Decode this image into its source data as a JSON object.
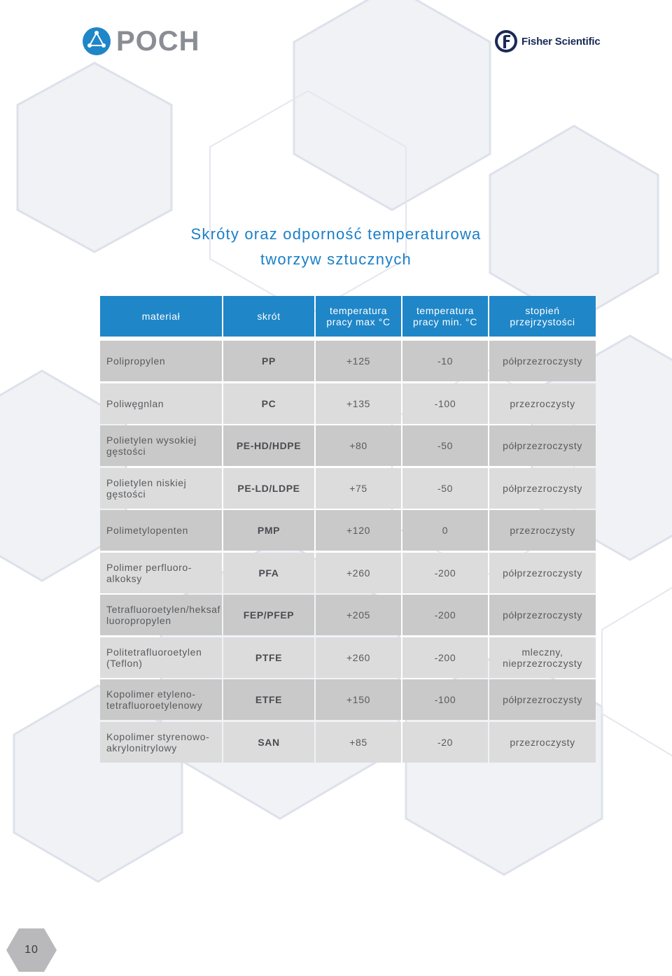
{
  "logos": {
    "poch": "POCH",
    "fisher": "Fisher Scientific"
  },
  "title": {
    "line1": "Skróty oraz odporność temperaturowa",
    "line2": "tworzyw sztucznych"
  },
  "colors": {
    "accent": "#1f86c8",
    "title": "#1a7fc7",
    "row_dark": "#c9c9c9",
    "row_light": "#dcdcdc"
  },
  "table": {
    "headers": [
      "materiał",
      "skrót",
      "temperatura\npracy max °C",
      "temperatura\npracy min. °C",
      "stopień\nprzejrzystości"
    ],
    "rows": [
      {
        "material": "Polipropylen",
        "abbr": "PP",
        "tmax": "+125",
        "tmin": "-10",
        "transparency": "półprzezroczysty"
      },
      {
        "material": "Poliwęgnlan",
        "abbr": "PC",
        "tmax": "+135",
        "tmin": "-100",
        "transparency": "przezroczysty"
      },
      {
        "material": "Polietylen wysokiej\ngęstości",
        "abbr": "PE-HD/HDPE",
        "tmax": "+80",
        "tmin": "-50",
        "transparency": "półprzezroczysty"
      },
      {
        "material": "Polietylen niskiej\ngęstości",
        "abbr": "PE-LD/LDPE",
        "tmax": "+75",
        "tmin": "-50",
        "transparency": "półprzezroczysty"
      },
      {
        "material": "Polimetylopenten",
        "abbr": "PMP",
        "tmax": "+120",
        "tmin": "0",
        "transparency": "przezroczysty"
      },
      {
        "material": "Polimer perfluoro-\nalkoksy",
        "abbr": "PFA",
        "tmax": "+260",
        "tmin": "-200",
        "transparency": "półprzezroczysty"
      },
      {
        "material": "Tetrafluoroetylen/heksaf\nluoropropylen",
        "abbr": "FEP/PFEP",
        "tmax": "+205",
        "tmin": "-200",
        "transparency": "półprzezroczysty"
      },
      {
        "material": "Politetrafluoroetylen\n(Teflon)",
        "abbr": "PTFE",
        "tmax": "+260",
        "tmin": "-200",
        "transparency": "mleczny,\nnieprzezroczysty"
      },
      {
        "material": "Kopolimer etyleno-\ntetrafluoroetylenowy",
        "abbr": "ETFE",
        "tmax": "+150",
        "tmin": "-100",
        "transparency": "półprzezroczysty"
      },
      {
        "material": "Kopolimer styrenowo-\nakrylonitrylowy",
        "abbr": "SAN",
        "tmax": "+85",
        "tmin": "-20",
        "transparency": "przezroczysty"
      }
    ]
  },
  "page_number": "10"
}
